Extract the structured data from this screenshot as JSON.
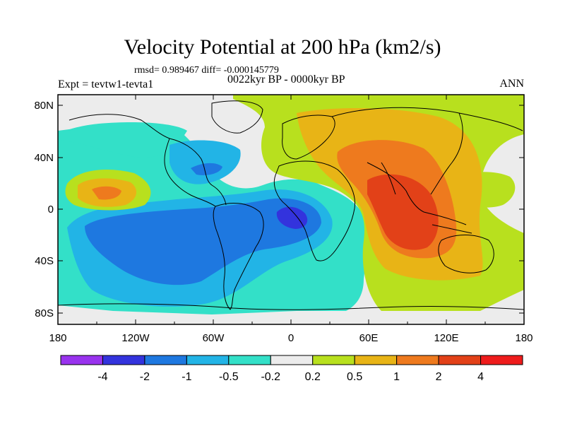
{
  "title": "Velocity Potential at 200 hPa (km2/s)",
  "stats": "rmsd= 0.989467 diff= -0.000145779",
  "left_label": "Expt = tevtw1-tevta1",
  "center_label": "0022kyr BP - 0000kyr BP",
  "right_label": "ANN",
  "axes": {
    "x_ticks": [
      "180",
      "120W",
      "60W",
      "0",
      "60E",
      "120E",
      "180"
    ],
    "y_ticks": [
      "80N",
      "40N",
      "0",
      "40S",
      "80S"
    ]
  },
  "colorbar": {
    "labels": [
      "-4",
      "-2",
      "-1",
      "-0.5",
      "-0.2",
      "0.2",
      "0.5",
      "1",
      "2",
      "4"
    ],
    "colors": [
      "#9933ee",
      "#3333dd",
      "#1e78e0",
      "#22b4e6",
      "#33e0c8",
      "#ececec",
      "#b8e01e",
      "#e8b416",
      "#ee7a1e",
      "#e24118",
      "#ee1c1c"
    ]
  },
  "icons": {
    "map_projection": "cylindrical-equidistant"
  }
}
